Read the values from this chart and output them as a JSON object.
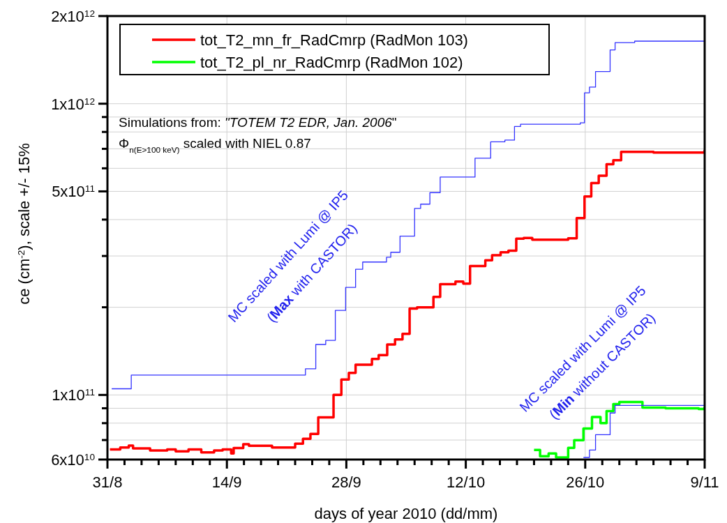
{
  "chart_data": {
    "type": "step",
    "xlabel": "days of year 2010 (dd/mm)",
    "ylabel": "ce (cm$^{-2}$), scale +/- 15%",
    "log": "y",
    "grid": true,
    "legend": "top left",
    "line_style": "solid",
    "xlim": [
      "2010-08-31",
      "2010-11-09"
    ],
    "xticks": [
      {
        "value": "2010-08-31",
        "label": "31/8"
      },
      {
        "value": "2010-09-02",
        "label": null
      },
      {
        "value": "2010-09-04",
        "label": null
      },
      {
        "value": "2010-09-06",
        "label": null
      },
      {
        "value": "2010-09-08",
        "label": null
      },
      {
        "value": "2010-09-10",
        "label": null
      },
      {
        "value": "2010-09-12",
        "label": null
      },
      {
        "value": "2010-09-14",
        "label": "14/9"
      },
      {
        "value": "2010-09-16",
        "label": null
      },
      {
        "value": "2010-09-18",
        "label": null
      },
      {
        "value": "2010-09-20",
        "label": null
      },
      {
        "value": "2010-09-22",
        "label": null
      },
      {
        "value": "2010-09-24",
        "label": null
      },
      {
        "value": "2010-09-26",
        "label": null
      },
      {
        "value": "2010-09-28",
        "label": "28/9"
      },
      {
        "value": "2010-09-30",
        "label": null
      },
      {
        "value": "2010-10-02",
        "label": null
      },
      {
        "value": "2010-10-04",
        "label": null
      },
      {
        "value": "2010-10-06",
        "label": null
      },
      {
        "value": "2010-10-08",
        "label": null
      },
      {
        "value": "2010-10-10",
        "label": null
      },
      {
        "value": "2010-10-12",
        "label": "12/10"
      },
      {
        "value": "2010-10-14",
        "label": null
      },
      {
        "value": "2010-10-16",
        "label": null
      },
      {
        "value": "2010-10-18",
        "label": null
      },
      {
        "value": "2010-10-20",
        "label": null
      },
      {
        "value": "2010-10-22",
        "label": null
      },
      {
        "value": "2010-10-24",
        "label": null
      },
      {
        "value": "2010-10-26",
        "label": "26/10"
      },
      {
        "value": "2010-10-28",
        "label": null
      },
      {
        "value": "2010-10-30",
        "label": null
      },
      {
        "value": "2010-11-01",
        "label": null
      },
      {
        "value": "2010-11-03",
        "label": null
      },
      {
        "value": "2010-11-05",
        "label": null
      },
      {
        "value": "2010-11-07",
        "label": null
      },
      {
        "value": "2010-11-09",
        "label": "9/11"
      }
    ],
    "ylim": [
      60000000000.0,
      2000000000000.0
    ],
    "yticks": [
      {
        "value": 60000000000.0,
        "label": "6x10$^{10}$"
      },
      {
        "value": 70000000000.0,
        "label": null
      },
      {
        "value": 80000000000.0,
        "label": null
      },
      {
        "value": 90000000000.0,
        "label": null
      },
      {
        "value": 100000000000.0,
        "label": "1x10$^{11}$"
      },
      {
        "value": 200000000000.0,
        "label": null
      },
      {
        "value": 300000000000.0,
        "label": null
      },
      {
        "value": 400000000000.0,
        "label": null
      },
      {
        "value": 500000000000.0,
        "label": "5x10$^{11}$"
      },
      {
        "value": 600000000000.0,
        "label": null
      },
      {
        "value": 700000000000.0,
        "label": null
      },
      {
        "value": 800000000000.0,
        "label": null
      },
      {
        "value": 900000000000.0,
        "label": null
      },
      {
        "value": 1000000000000.0,
        "label": "1x10$^{12}$"
      },
      {
        "value": 2000000000000.0,
        "label": "2x10$^{12}$"
      }
    ],
    "annotations": [
      "Simulations from: \"TOTEM T2 EDR, Jan. 2006\"",
      "Φ$_{n(E>100 keV)}$ scaled with NIEL 0.87",
      "MC scaled with Lumi @ IP5",
      "(Max with CASTOR)",
      "MC scaled with Lumi @ IP5",
      "(Min without CASTOR)"
    ],
    "series": [
      {
        "name": "tot_T2_mn_fr_RadCmrp (RadMon 103)",
        "color": "#ff0000",
        "x": [
          "2010-08-31T07:00",
          "2010-09-01T12:00",
          "2010-09-02T12:00",
          "2010-09-03T00:00",
          "2010-09-05T00:00",
          "2010-09-07T00:00",
          "2010-09-08T00:00",
          "2010-09-09T12:00",
          "2010-09-11T00:00",
          "2010-09-12T12:00",
          "2010-09-13T12:00",
          "2010-09-14T12:00",
          "2010-09-14T19:00",
          "2010-09-15T22:00",
          "2010-09-16T14:00",
          "2010-09-19T07:00",
          "2010-09-22T00:00",
          "2010-09-22T22:00",
          "2010-09-23T19:00",
          "2010-09-24T17:00",
          "2010-09-26T12:00",
          "2010-09-27T10:00",
          "2010-09-28T07:00",
          "2010-09-29T02:00",
          "2010-10-01T00:00",
          "2010-10-01T19:00",
          "2010-10-02T19:00",
          "2010-10-03T17:00",
          "2010-10-04T14:00",
          "2010-10-05T10:00",
          "2010-10-06T07:00",
          "2010-10-08T05:00",
          "2010-10-09T00:00",
          "2010-10-10T19:00",
          "2010-10-11T17:00",
          "2010-10-12T12:00",
          "2010-10-14T07:00",
          "2010-10-15T02:00",
          "2010-10-16T02:00",
          "2010-10-17T00:00",
          "2010-10-17T22:00",
          "2010-10-18T19:00",
          "2010-10-19T19:00",
          "2010-10-24T00:00",
          "2010-10-25T00:00",
          "2010-10-25T22:00",
          "2010-10-26T17:00",
          "2010-10-27T14:00",
          "2010-10-28T12:00",
          "2010-10-29T07:00",
          "2010-10-30T05:00",
          "2010-11-03T00:00",
          "2010-11-09T00:00"
        ],
        "values": [
          65000000000.0,
          66000000000.0,
          67000000000.0,
          65500000000.0,
          64500000000.0,
          65000000000.0,
          64000000000.0,
          65000000000.0,
          63500000000.0,
          64500000000.0,
          65000000000.0,
          63000000000.0,
          65700000000.0,
          67700000000.0,
          66900000000.0,
          66000000000.0,
          68000000000.0,
          70700000000.0,
          73500000000.0,
          83800000000.0,
          100000000000.0,
          113000000000.0,
          119000000000.0,
          127000000000.0,
          133000000000.0,
          137000000000.0,
          149000000000.0,
          155000000000.0,
          162000000000.0,
          198000000000.0,
          200000000000.0,
          217000000000.0,
          240000000000.0,
          245000000000.0,
          241000000000.0,
          277000000000.0,
          290000000000.0,
          302000000000.0,
          309000000000.0,
          313000000000.0,
          344000000000.0,
          346000000000.0,
          341000000000.0,
          345000000000.0,
          405000000000.0,
          480000000000.0,
          534000000000.0,
          566000000000.0,
          620000000000.0,
          640000000000.0,
          683000000000.0,
          680000000000.0,
          694000000000.0
        ]
      },
      {
        "name": "tot_T2_pl_nr_RadCmrp (RadMon 102)",
        "color": "#00ff00",
        "x": [
          "2010-10-20T00:00",
          "2010-10-20T17:00",
          "2010-10-21T17:00",
          "2010-10-22T14:00",
          "2010-10-24T00:00",
          "2010-10-24T17:00",
          "2010-10-25T19:00",
          "2010-10-26T19:00",
          "2010-10-27T19:00",
          "2010-10-28T12:00",
          "2010-10-29T07:00",
          "2010-10-30T00:00",
          "2010-11-01T17:00",
          "2010-11-04T10:00",
          "2010-11-08T07:00",
          "2010-11-09T00:00"
        ],
        "values": [
          64700000000.0,
          61600000000.0,
          63000000000.0,
          61000000000.0,
          65800000000.0,
          69900000000.0,
          76700000000.0,
          84000000000.0,
          80000000000.0,
          88000000000.0,
          93000000000.0,
          94600000000.0,
          90500000000.0,
          90000000000.0,
          89500000000.0,
          91000000000.0
        ]
      },
      {
        "color": "#3333ff",
        "x": [
          "2010-08-31T12:00",
          "2010-09-02T19:00",
          "2010-09-23T05:00",
          "2010-09-24T10:00",
          "2010-09-25T14:00",
          "2010-09-26T17:00",
          "2010-09-27T22:00",
          "2010-09-29T02:00",
          "2010-09-29T22:00",
          "2010-10-02T17:00",
          "2010-10-03T05:00",
          "2010-10-04T07:00",
          "2010-10-06T00:00",
          "2010-10-06T17:00",
          "2010-10-07T19:00",
          "2010-10-09T00:00",
          "2010-10-13T02:00",
          "2010-10-14T22:00",
          "2010-10-16T14:00",
          "2010-10-17T17:00",
          "2010-10-18T10:00",
          "2010-10-25T10:00",
          "2010-10-25T22:00",
          "2010-10-26T12:00",
          "2010-10-27T05:00",
          "2010-10-28T22:00",
          "2010-10-29T12:00",
          "2010-10-31T19:00",
          "2010-11-09T00:00"
        ],
        "values": [
          105000000000.0,
          117000000000.0,
          123000000000.0,
          149000000000.0,
          154000000000.0,
          195000000000.0,
          234000000000.0,
          270000000000.0,
          286000000000.0,
          297000000000.0,
          309000000000.0,
          351000000000.0,
          437000000000.0,
          452000000000.0,
          495000000000.0,
          560000000000.0,
          650000000000.0,
          740000000000.0,
          750000000000.0,
          835000000000.0,
          850000000000.0,
          860000000000.0,
          1090000000000.0,
          1140000000000.0,
          1290000000000.0,
          1530000000000.0,
          1620000000000.0,
          1640000000000.0,
          1640000000000.0
        ]
      },
      {
        "color": "#3333ff",
        "x": [
          "2010-10-25T19:00",
          "2010-10-26T12:00",
          "2010-10-27T05:00",
          "2010-10-28T22:00",
          "2010-10-29T12:00",
          "2010-11-09T00:00"
        ],
        "values": [
          61000000000.0,
          64700000000.0,
          73000000000.0,
          86700000000.0,
          92000000000.0,
          92000000000.0
        ]
      }
    ]
  }
}
